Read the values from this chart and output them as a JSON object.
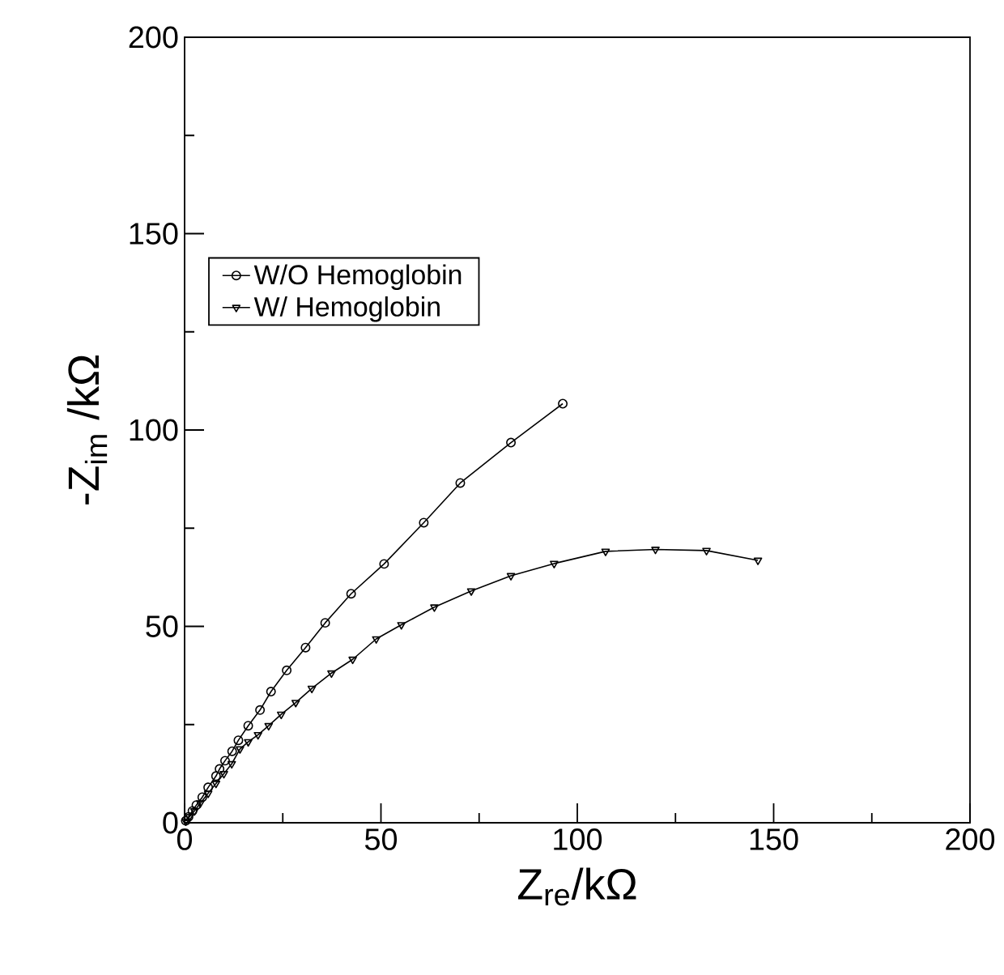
{
  "chart_data": {
    "type": "line",
    "xlabel": "Z$_{re}$/kΩ",
    "ylabel": "-Z$_{im}$ /kΩ",
    "xlim": [
      0,
      200
    ],
    "ylim": [
      0,
      200
    ],
    "xticks": [
      0,
      50,
      100,
      150,
      200
    ],
    "yticks": [
      0,
      50,
      100,
      150,
      200
    ],
    "grid": false,
    "legend": "top left",
    "line_style": "solid",
    "series": [
      {
        "name": "W/O Hemoglobin",
        "color": "#000000",
        "marker": "circle",
        "x": [
          0.3,
          1,
          2,
          3,
          4.5,
          6,
          8.0,
          8.9,
          10.3,
          12.1,
          13.7,
          16.2,
          19.2,
          22.0,
          26.0,
          30.8,
          35.8,
          42.4,
          50.8,
          60.9,
          70.2,
          83.1,
          96.3
        ],
        "values": [
          0.5,
          1.5,
          3,
          4.5,
          6.5,
          9,
          11.9,
          13.7,
          15.8,
          18.2,
          21.0,
          24.7,
          28.7,
          33.4,
          38.8,
          44.6,
          50.9,
          58.3,
          65.9,
          76.4,
          86.5,
          96.8,
          106.7
        ]
      },
      {
        "name": "W/ Hemoglobin",
        "color": "#000000",
        "marker": "triangle",
        "x": [
          0.3,
          1.2,
          2.5,
          4,
          6,
          8,
          10,
          12,
          14.1,
          16.2,
          18.7,
          21.4,
          24.6,
          28.3,
          32.4,
          37.4,
          42.8,
          48.8,
          55.2,
          63.6,
          73.0,
          83.1,
          94.1,
          107.2,
          119.9,
          132.9,
          146.0
        ],
        "values": [
          0.4,
          1.5,
          3,
          5,
          7.5,
          10,
          12.5,
          15,
          18.8,
          20.6,
          22.4,
          24.7,
          27.6,
          30.6,
          34.2,
          38.1,
          41.6,
          46.8,
          50.4,
          54.9,
          59.0,
          62.9,
          66.0,
          69.1,
          69.6,
          69.3,
          66.8
        ]
      }
    ]
  }
}
